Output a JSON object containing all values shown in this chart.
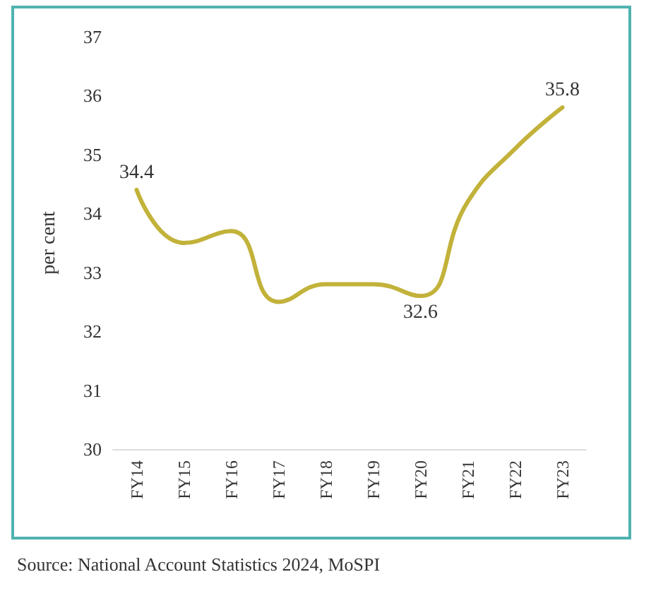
{
  "chart_data": {
    "type": "line",
    "ylabel": "per cent",
    "categories": [
      "FY14",
      "FY15",
      "FY16",
      "FY17",
      "FY18",
      "FY19",
      "FY20",
      "FY21",
      "FY22",
      "FY23"
    ],
    "series": [
      {
        "color": "#c2b23a",
        "values": [
          34.4,
          33.5,
          33.7,
          32.5,
          32.8,
          32.8,
          32.6,
          34.2,
          35.1,
          35.8
        ],
        "value_labels": [
          "34.4",
          null,
          null,
          null,
          null,
          null,
          "32.6",
          null,
          null,
          "35.8"
        ]
      }
    ],
    "ylim": [
      30,
      37
    ],
    "yticks": [
      30,
      31,
      32,
      33,
      34,
      35,
      36,
      37
    ],
    "grid": false,
    "marker": "none",
    "line_style": "solid",
    "annotations": [
      "Source: National Account Statistics 2024, MoSPI"
    ]
  }
}
